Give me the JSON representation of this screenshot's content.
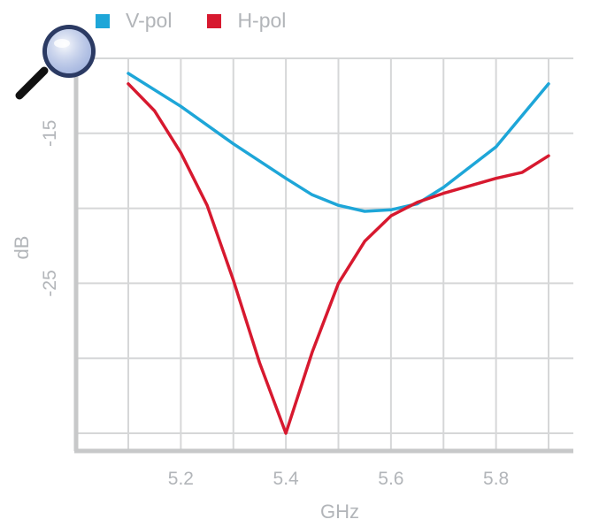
{
  "chart_data": {
    "type": "line",
    "title": "",
    "xlabel": "GHz",
    "ylabel": "dB",
    "xlim": [
      5.1,
      5.9
    ],
    "ylim": [
      -35,
      -10
    ],
    "x_ticks": [
      5.2,
      5.4,
      5.6,
      5.8
    ],
    "y_ticks": [
      -15,
      -25
    ],
    "grid": true,
    "legend": "top-left",
    "series": [
      {
        "name": "V-pol",
        "color": "#1ea6d8",
        "x": [
          5.1,
          5.2,
          5.3,
          5.4,
          5.45,
          5.5,
          5.55,
          5.6,
          5.65,
          5.7,
          5.8,
          5.9
        ],
        "y": [
          -11.0,
          -13.2,
          -15.7,
          -18.0,
          -19.1,
          -19.8,
          -20.2,
          -20.1,
          -19.7,
          -18.6,
          -15.9,
          -11.7
        ]
      },
      {
        "name": "H-pol",
        "color": "#d7192f",
        "x": [
          5.1,
          5.15,
          5.2,
          5.25,
          5.3,
          5.35,
          5.4,
          5.45,
          5.5,
          5.55,
          5.6,
          5.65,
          5.7,
          5.75,
          5.8,
          5.85,
          5.9
        ],
        "y": [
          -11.7,
          -13.5,
          -16.3,
          -19.8,
          -24.8,
          -30.3,
          -35.0,
          -29.6,
          -25.0,
          -22.2,
          -20.5,
          -19.6,
          -19.0,
          -18.5,
          -18.0,
          -17.6,
          -16.5
        ]
      }
    ]
  },
  "tool": {
    "icon": "magnifier-icon"
  }
}
